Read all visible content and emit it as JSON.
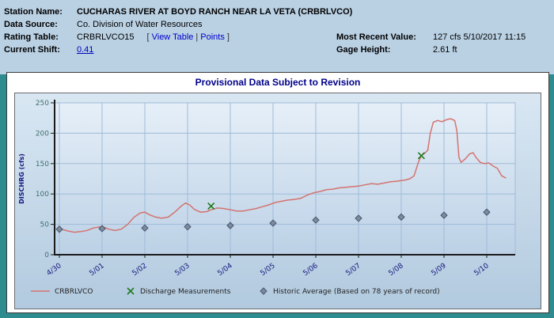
{
  "header": {
    "station_name_label": "Station Name:",
    "station_name_value": "CUCHARAS RIVER AT BOYD RANCH NEAR LA VETA (CRBRLVCO)",
    "data_source_label": "Data Source:",
    "data_source_value": "Co. Division of Water Resources",
    "rating_table_label": "Rating Table:",
    "rating_table_value": "CRBRLVCO15",
    "rating_links_open": "[",
    "view_table_label": "View Table",
    "rating_links_sep": "|",
    "points_label": "Points",
    "rating_links_close": "]",
    "current_shift_label": "Current Shift:",
    "current_shift_value": "0.41",
    "most_recent_value_label": "Most Recent Value:",
    "most_recent_value": "127 cfs 5/10/2017 11:15",
    "gage_height_label": "Gage Height:",
    "gage_height_value": "2.61 ft"
  },
  "chart": {
    "title": "Provisional Data Subject to Revision"
  },
  "chart_data": {
    "type": "line",
    "title": "Provisional Data Subject to Revision",
    "xlabel": "",
    "ylabel": "DISCHRG (cfs)",
    "ylim": [
      0,
      250
    ],
    "yticks": [
      0,
      50,
      100,
      150,
      200,
      250
    ],
    "x_tick_labels": [
      "4/30",
      "5/01",
      "5/02",
      "5/03",
      "5/04",
      "5/05",
      "5/06",
      "5/07",
      "5/08",
      "5/09",
      "5/10"
    ],
    "x_scale_note": "x values in series points are days after 4/30",
    "grid": true,
    "legend_position": "bottom",
    "series": [
      {
        "name": "CRBRLVCO",
        "marker": "line",
        "color": "#d4736f",
        "points": [
          [
            0,
            42
          ],
          [
            0.1,
            41
          ],
          [
            0.2,
            39
          ],
          [
            0.35,
            37
          ],
          [
            0.5,
            38
          ],
          [
            0.65,
            40
          ],
          [
            0.8,
            44
          ],
          [
            0.95,
            46
          ],
          [
            1.05,
            45
          ],
          [
            1.15,
            42
          ],
          [
            1.3,
            40
          ],
          [
            1.45,
            42
          ],
          [
            1.6,
            50
          ],
          [
            1.75,
            62
          ],
          [
            1.9,
            69
          ],
          [
            2,
            70
          ],
          [
            2.1,
            66
          ],
          [
            2.25,
            62
          ],
          [
            2.4,
            60
          ],
          [
            2.55,
            62
          ],
          [
            2.7,
            70
          ],
          [
            2.85,
            80
          ],
          [
            2.95,
            85
          ],
          [
            3.05,
            82
          ],
          [
            3.15,
            75
          ],
          [
            3.3,
            70
          ],
          [
            3.45,
            71
          ],
          [
            3.55,
            74
          ],
          [
            3.7,
            77
          ],
          [
            3.85,
            76
          ],
          [
            4,
            74
          ],
          [
            4.15,
            72
          ],
          [
            4.3,
            72
          ],
          [
            4.45,
            74
          ],
          [
            4.6,
            76
          ],
          [
            4.75,
            79
          ],
          [
            4.9,
            82
          ],
          [
            5.05,
            86
          ],
          [
            5.2,
            88
          ],
          [
            5.35,
            90
          ],
          [
            5.5,
            91
          ],
          [
            5.65,
            93
          ],
          [
            5.8,
            98
          ],
          [
            5.95,
            102
          ],
          [
            6.1,
            104
          ],
          [
            6.25,
            107
          ],
          [
            6.4,
            108
          ],
          [
            6.55,
            110
          ],
          [
            6.7,
            111
          ],
          [
            6.85,
            112
          ],
          [
            7,
            113
          ],
          [
            7.15,
            115
          ],
          [
            7.3,
            117
          ],
          [
            7.45,
            116
          ],
          [
            7.6,
            118
          ],
          [
            7.75,
            120
          ],
          [
            7.9,
            121
          ],
          [
            8,
            122
          ],
          [
            8.1,
            123
          ],
          [
            8.2,
            125
          ],
          [
            8.3,
            130
          ],
          [
            8.4,
            152
          ],
          [
            8.47,
            163
          ],
          [
            8.55,
            167
          ],
          [
            8.62,
            172
          ],
          [
            8.68,
            200
          ],
          [
            8.75,
            218
          ],
          [
            8.85,
            221
          ],
          [
            8.95,
            219
          ],
          [
            9.05,
            222
          ],
          [
            9.15,
            224
          ],
          [
            9.25,
            221
          ],
          [
            9.3,
            205
          ],
          [
            9.35,
            160
          ],
          [
            9.4,
            152
          ],
          [
            9.5,
            158
          ],
          [
            9.6,
            166
          ],
          [
            9.68,
            168
          ],
          [
            9.75,
            160
          ],
          [
            9.85,
            152
          ],
          [
            9.95,
            150
          ],
          [
            10.05,
            151
          ],
          [
            10.15,
            146
          ],
          [
            10.25,
            142
          ],
          [
            10.3,
            136
          ],
          [
            10.35,
            130
          ],
          [
            10.45,
            126
          ]
        ]
      },
      {
        "name": "Discharge Measurements",
        "marker": "x",
        "color": "#1f7a1f",
        "points": [
          [
            3.55,
            80
          ],
          [
            8.47,
            163
          ]
        ]
      },
      {
        "name": "Historic Average (Based on 78 years of record)",
        "marker": "diamond",
        "color": "#7d8ba0",
        "points": [
          [
            0,
            42
          ],
          [
            1,
            43
          ],
          [
            2,
            44
          ],
          [
            3,
            46
          ],
          [
            4,
            48
          ],
          [
            5,
            52
          ],
          [
            6,
            57
          ],
          [
            7,
            60
          ],
          [
            8,
            62
          ],
          [
            9,
            65
          ],
          [
            10,
            70
          ]
        ]
      }
    ]
  }
}
